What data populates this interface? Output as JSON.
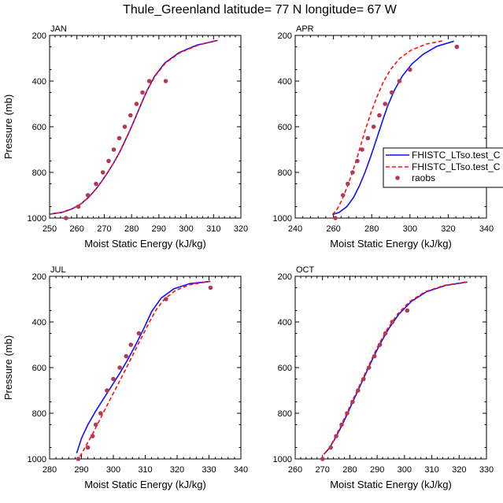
{
  "figure": {
    "title": "Thule_Greenland  latitude= 77 N longitude= 67 W"
  },
  "colors": {
    "series1": "#1010ff",
    "series2": "#ff1010",
    "raobs": "#b03b57",
    "axis": "#000000"
  },
  "legend": {
    "placement": "right of APR panel",
    "entries": [
      "FHISTC_LTso.test_C",
      "FHISTC_LTso.test_C",
      "raobs"
    ]
  },
  "chart_data": [
    {
      "type": "line",
      "panel": "JAN",
      "title": "JAN",
      "xlabel": "Moist Static Energy (kJ/kg)",
      "ylabel": "Pressure (mb)",
      "xlim": [
        250,
        320
      ],
      "ylim": [
        1000,
        200
      ],
      "y_inverted": true,
      "xticks": [
        250,
        260,
        270,
        280,
        290,
        300,
        310,
        320
      ],
      "yticks": [
        200,
        400,
        600,
        800,
        1000
      ],
      "series": [
        {
          "legend_index": 0,
          "style": "solid",
          "color": "#1010ff",
          "x": [
            250,
            254.5,
            258.2,
            261.5,
            264.2,
            266.7,
            269,
            271.3,
            273.5,
            275.6,
            277.6,
            279.6,
            281.6,
            283.6,
            285.8,
            288.5,
            292.2,
            297.4,
            304,
            311.5
          ],
          "y": [
            983,
            975,
            960,
            938,
            910,
            877,
            840,
            800,
            757,
            712,
            662,
            610,
            555,
            498,
            438,
            377,
            320,
            275,
            242,
            222
          ]
        },
        {
          "legend_index": 1,
          "style": "dashed",
          "color": "#ff1010",
          "x": [
            250,
            254.5,
            258.2,
            261.5,
            264.2,
            266.7,
            269,
            271.3,
            273.5,
            275.6,
            277.6,
            279.6,
            281.6,
            283.6,
            285.8,
            288.7,
            292.5,
            297.8,
            304.5,
            311
          ],
          "y": [
            983,
            975,
            960,
            938,
            910,
            877,
            840,
            800,
            757,
            712,
            662,
            610,
            555,
            498,
            438,
            377,
            320,
            275,
            242,
            222
          ]
        },
        {
          "legend_index": 2,
          "style": "points",
          "color": "#b03b57",
          "x": [
            256,
            260.5,
            264,
            267,
            269.5,
            271.6,
            273.5,
            275.5,
            277.5,
            279.6,
            281.8,
            284,
            286.5,
            292.5
          ],
          "y": [
            1000,
            950,
            900,
            850,
            800,
            750,
            700,
            650,
            600,
            550,
            500,
            450,
            400,
            400
          ]
        }
      ]
    },
    {
      "type": "line",
      "panel": "APR",
      "title": "APR",
      "xlabel": "Moist Static Energy (kJ/kg)",
      "ylabel": "",
      "xlim": [
        240,
        340
      ],
      "ylim": [
        1000,
        200
      ],
      "y_inverted": true,
      "xticks": [
        240,
        260,
        280,
        300,
        320,
        340
      ],
      "yticks": [
        200,
        400,
        600,
        800,
        1000
      ],
      "series": [
        {
          "legend_index": 0,
          "style": "solid",
          "color": "#1010ff",
          "x": [
            259.5,
            263,
            267,
            270.5,
            273.5,
            276.5,
            279.5,
            282.5,
            285.5,
            288.5,
            292,
            296,
            301,
            307,
            314,
            323
          ],
          "y": [
            985,
            975,
            950,
            910,
            860,
            800,
            730,
            655,
            578,
            505,
            438,
            378,
            325,
            282,
            248,
            225
          ]
        },
        {
          "legend_index": 1,
          "style": "dashed",
          "color": "#ff1010",
          "x": [
            259.5,
            262,
            264.5,
            267,
            269.5,
            272,
            274.5,
            277,
            279.8,
            282.8,
            286,
            289.8,
            294.5,
            300.5,
            308.5,
            318
          ],
          "y": [
            985,
            960,
            920,
            868,
            810,
            745,
            675,
            605,
            535,
            468,
            405,
            350,
            302,
            265,
            238,
            222
          ]
        },
        {
          "legend_index": 2,
          "style": "points",
          "color": "#b03b57",
          "x": [
            261,
            265,
            267.5,
            270,
            272.5,
            275,
            278,
            281,
            284,
            287,
            290.5,
            294.5,
            300,
            324.5
          ],
          "y": [
            1000,
            900,
            850,
            800,
            750,
            700,
            650,
            600,
            550,
            500,
            450,
            400,
            350,
            250
          ]
        }
      ]
    },
    {
      "type": "line",
      "panel": "JUL",
      "title": "JUL",
      "xlabel": "Moist Static Energy (kJ/kg)",
      "ylabel": "Pressure (mb)",
      "xlim": [
        280,
        340
      ],
      "ylim": [
        1000,
        200
      ],
      "y_inverted": true,
      "xticks": [
        280,
        290,
        300,
        310,
        320,
        330,
        340
      ],
      "yticks": [
        200,
        400,
        600,
        800,
        1000
      ],
      "series": [
        {
          "legend_index": 0,
          "style": "solid",
          "color": "#1010ff",
          "x": [
            288.5,
            290,
            292,
            294.5,
            297,
            299.5,
            302,
            304.5,
            307,
            309.5,
            312,
            315,
            319,
            324,
            330.5
          ],
          "y": [
            975,
            910,
            850,
            790,
            735,
            680,
            625,
            565,
            500,
            430,
            355,
            295,
            255,
            232,
            222
          ]
        },
        {
          "legend_index": 1,
          "style": "dashed",
          "color": "#ff1010",
          "x": [
            289.5,
            291.5,
            293.5,
            295.5,
            297.5,
            299.5,
            301.5,
            303.5,
            305.5,
            307.5,
            309.5,
            311.5,
            313.5,
            316,
            319.5,
            324,
            330.5
          ],
          "y": [
            990,
            940,
            890,
            835,
            780,
            725,
            672,
            617,
            562,
            505,
            450,
            395,
            345,
            300,
            262,
            237,
            222
          ]
        },
        {
          "legend_index": 2,
          "style": "points",
          "color": "#b03b57",
          "x": [
            289,
            292,
            293.5,
            294.5,
            296,
            298,
            300,
            302,
            304,
            305.5,
            308,
            316.5,
            330.5
          ],
          "y": [
            1000,
            950,
            900,
            850,
            800,
            700,
            650,
            600,
            550,
            500,
            450,
            300,
            250
          ]
        }
      ]
    },
    {
      "type": "line",
      "panel": "OCT",
      "title": "OCT",
      "xlabel": "Moist Static Energy (kJ/kg)",
      "ylabel": "",
      "xlim": [
        260,
        330
      ],
      "ylim": [
        1000,
        200
      ],
      "y_inverted": true,
      "xticks": [
        260,
        270,
        280,
        290,
        300,
        310,
        320,
        330
      ],
      "yticks": [
        200,
        400,
        600,
        800,
        1000
      ],
      "series": [
        {
          "legend_index": 0,
          "style": "solid",
          "color": "#1010ff",
          "x": [
            270.5,
            272.3,
            274.4,
            276.6,
            278.8,
            281,
            283.3,
            285.7,
            288.2,
            291,
            294.2,
            298,
            302.5,
            308,
            315,
            323
          ],
          "y": [
            980,
            955,
            915,
            865,
            810,
            752,
            692,
            630,
            565,
            498,
            430,
            365,
            310,
            268,
            240,
            225
          ]
        },
        {
          "legend_index": 1,
          "style": "dashed",
          "color": "#ff1010",
          "x": [
            270.5,
            272.3,
            274.2,
            276.3,
            278.5,
            280.7,
            283,
            285.4,
            287.9,
            290.6,
            293.8,
            297.5,
            302,
            307.5,
            314.5,
            322.5
          ],
          "y": [
            980,
            955,
            915,
            865,
            810,
            752,
            692,
            630,
            565,
            498,
            430,
            365,
            310,
            268,
            240,
            225
          ]
        },
        {
          "legend_index": 2,
          "style": "points",
          "color": "#b03b57",
          "x": [
            270,
            273,
            275,
            277,
            279,
            281,
            283,
            285,
            287,
            289,
            291,
            293,
            295.5,
            301
          ],
          "y": [
            1000,
            950,
            900,
            850,
            800,
            750,
            700,
            650,
            600,
            550,
            500,
            450,
            400,
            350
          ]
        }
      ]
    }
  ]
}
